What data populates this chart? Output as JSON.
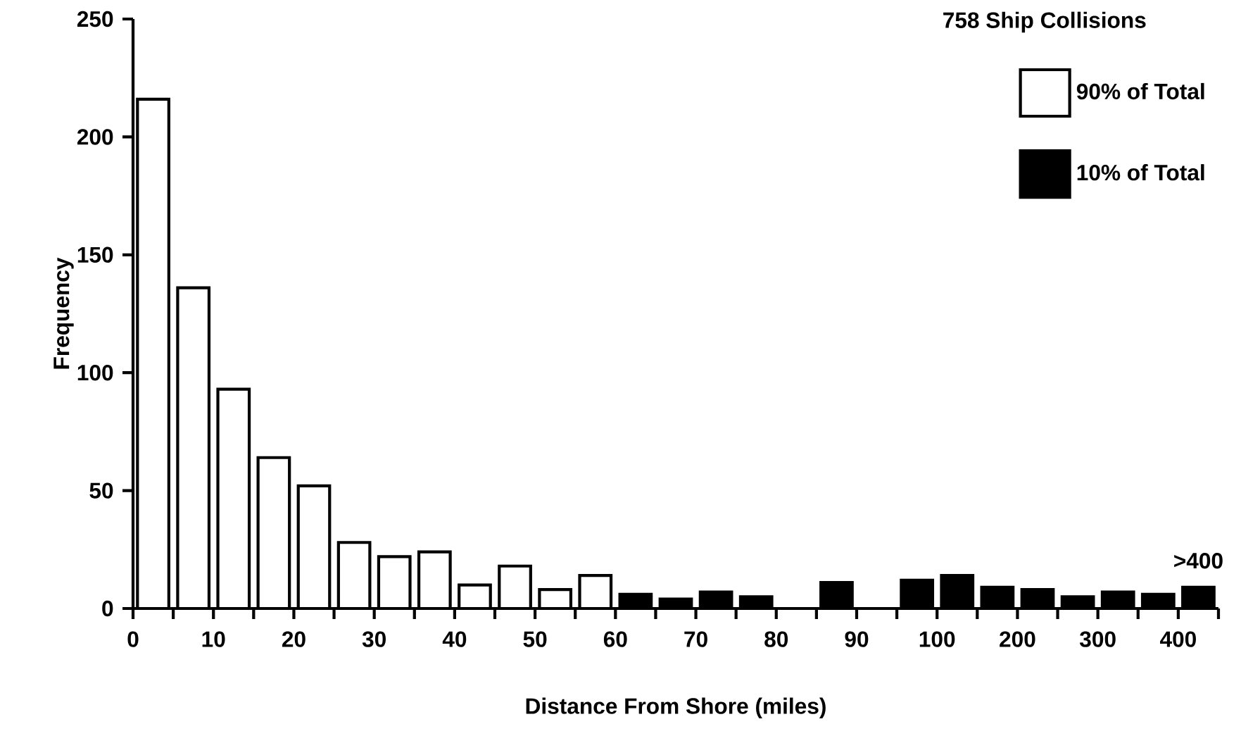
{
  "chart_data": {
    "type": "bar",
    "categories": [
      null,
      null,
      null,
      null,
      null,
      null,
      null,
      null,
      null,
      null,
      null,
      null,
      null,
      null,
      null,
      null,
      null,
      null,
      null,
      null,
      null,
      null,
      null,
      null,
      null,
      null,
      null
    ],
    "series": [
      {
        "name": "90% of Total",
        "color": "#ffffff",
        "values": [
          216,
          136,
          93,
          64,
          52,
          28,
          22,
          24,
          10,
          18,
          8,
          14,
          null,
          null,
          null,
          null,
          null,
          null,
          null,
          null,
          null,
          null,
          null,
          null,
          null,
          null,
          null
        ]
      },
      {
        "name": "10% of Total",
        "color": "#000000",
        "values": [
          null,
          null,
          null,
          null,
          null,
          null,
          null,
          null,
          null,
          null,
          null,
          null,
          6,
          4,
          7,
          5,
          0,
          11,
          0,
          12,
          14,
          9,
          8,
          5,
          7,
          6,
          9
        ]
      }
    ],
    "xlabel": "Distance From Shore (miles)",
    "ylabel": "Frequency",
    "legend_title": "758  Ship  Collisions",
    "legend": "top right",
    "ylim": [
      0,
      250
    ],
    "yticks": [
      0,
      50,
      100,
      150,
      200,
      250
    ],
    "annotations": [
      "0",
      "10",
      "20",
      "30",
      "40",
      "50",
      "60",
      "70",
      "80",
      "90",
      "100",
      "200",
      "300",
      "400",
      {
        "text": ">400",
        "y": 9
      }
    ]
  }
}
